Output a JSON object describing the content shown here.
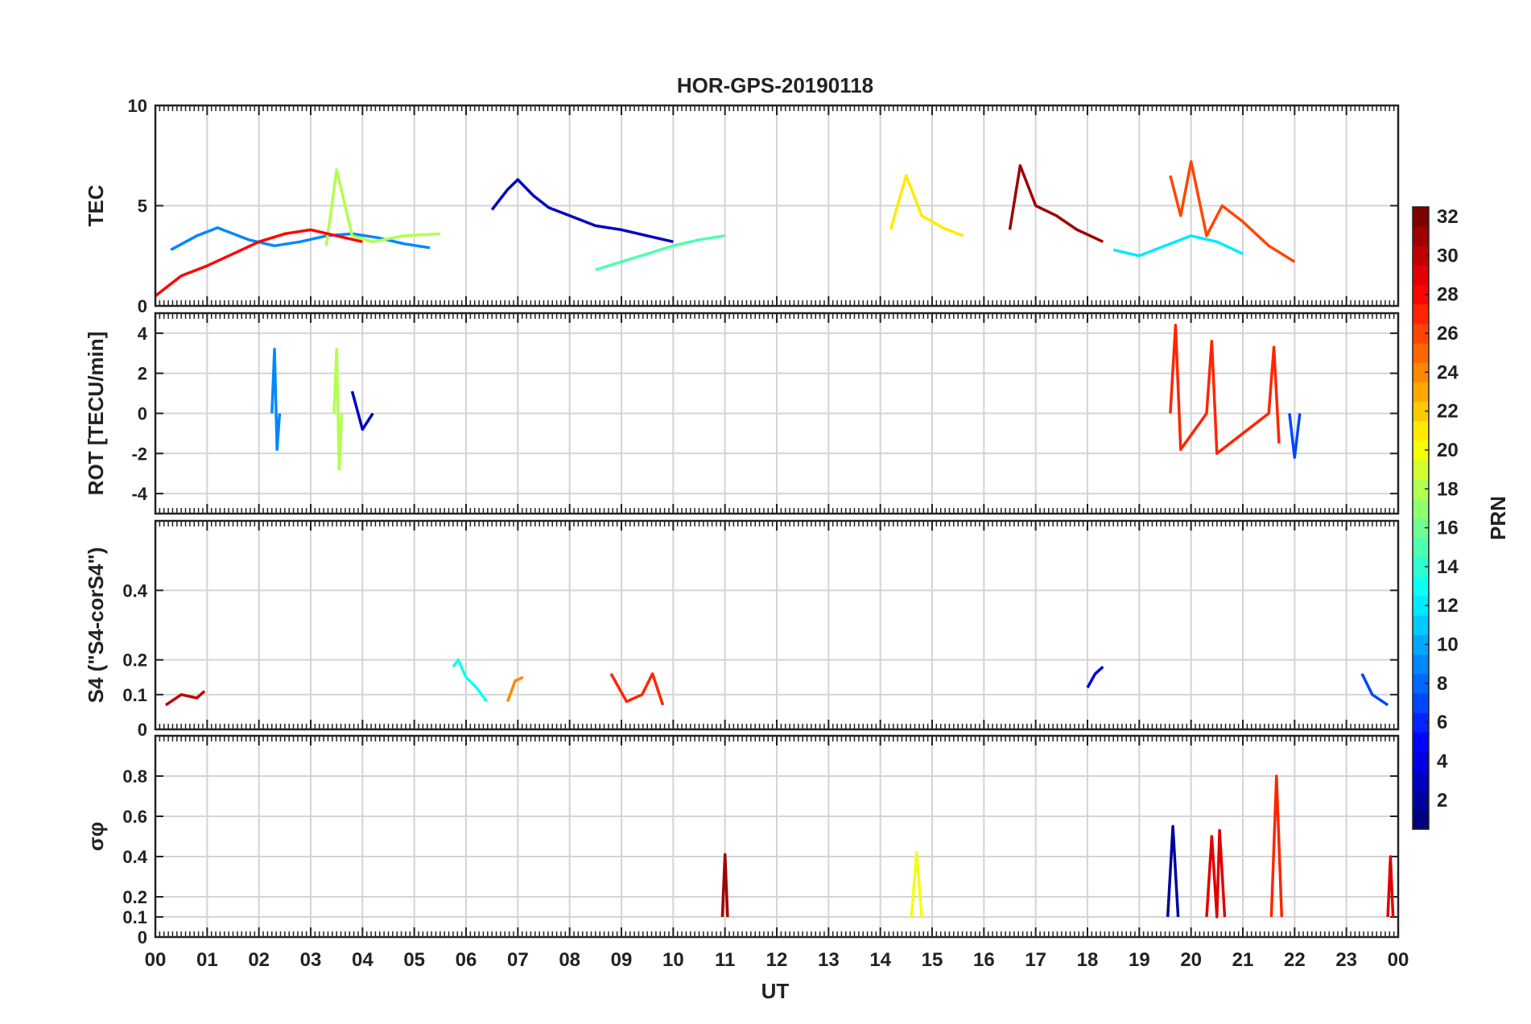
{
  "chart_data": {
    "type": "line",
    "title": "HOR-GPS-20190118",
    "xlabel": "UT",
    "x_ticks": [
      "00",
      "01",
      "02",
      "03",
      "04",
      "05",
      "06",
      "07",
      "08",
      "09",
      "10",
      "11",
      "12",
      "13",
      "14",
      "15",
      "16",
      "17",
      "18",
      "19",
      "20",
      "21",
      "22",
      "23",
      "00"
    ],
    "xlim": [
      0,
      24
    ],
    "grid": true,
    "colormap": "jet",
    "colorbar": {
      "label": "PRN",
      "range": [
        1,
        32
      ],
      "ticks": [
        "2",
        "4",
        "6",
        "8",
        "10",
        "12",
        "14",
        "16",
        "18",
        "20",
        "22",
        "24",
        "26",
        "28",
        "30",
        "32"
      ],
      "placement": "right"
    },
    "panels": [
      {
        "id": "tec",
        "ylabel": "TEC",
        "ylim": [
          0,
          10
        ],
        "yticks": [
          "0",
          "5",
          "10"
        ],
        "series": [
          {
            "prn": 3,
            "x": [
              6.5,
              6.8,
              7.0,
              7.3,
              7.6,
              8.0,
              8.5,
              9.0,
              9.5,
              10.0
            ],
            "values": [
              4.8,
              5.8,
              6.3,
              5.5,
              4.9,
              4.5,
              4.0,
              3.8,
              3.5,
              3.2
            ]
          },
          {
            "prn": 9,
            "x": [
              0.3,
              0.8,
              1.2,
              1.8,
              2.3,
              2.8,
              3.3,
              3.8,
              4.3,
              4.8,
              5.3
            ],
            "values": [
              2.8,
              3.5,
              3.9,
              3.3,
              3.0,
              3.2,
              3.5,
              3.6,
              3.4,
              3.1,
              2.9
            ]
          },
          {
            "prn": 12,
            "x": [
              18.5,
              19.0,
              19.5,
              20.0,
              20.5,
              21.0
            ],
            "values": [
              2.8,
              2.5,
              3.0,
              3.5,
              3.2,
              2.6
            ]
          },
          {
            "prn": 15,
            "x": [
              8.5,
              9.0,
              9.5,
              10.0,
              10.5,
              11.0
            ],
            "values": [
              1.8,
              2.2,
              2.6,
              3.0,
              3.3,
              3.5
            ]
          },
          {
            "prn": 18,
            "x": [
              3.3,
              3.5,
              3.8,
              4.2,
              4.8,
              5.5
            ],
            "values": [
              3.0,
              6.8,
              3.5,
              3.2,
              3.5,
              3.6
            ]
          },
          {
            "prn": 21,
            "x": [
              14.2,
              14.5,
              14.8,
              15.2,
              15.6
            ],
            "values": [
              3.8,
              6.5,
              4.5,
              3.9,
              3.5
            ]
          },
          {
            "prn": 26,
            "x": [
              19.6,
              19.8,
              20.0,
              20.3,
              20.6,
              21.0,
              21.5,
              22.0
            ],
            "values": [
              6.5,
              4.5,
              7.2,
              3.5,
              5.0,
              4.2,
              3.0,
              2.2
            ]
          },
          {
            "prn": 28,
            "x": [
              0.0,
              0.5,
              1.0,
              1.5,
              2.0,
              2.5,
              3.0,
              3.5,
              4.0
            ],
            "values": [
              0.5,
              1.5,
              2.0,
              2.6,
              3.2,
              3.6,
              3.8,
              3.5,
              3.2
            ]
          },
          {
            "prn": 31,
            "x": [
              16.5,
              16.7,
              17.0,
              17.4,
              17.8,
              18.3
            ],
            "values": [
              3.8,
              7.0,
              5.0,
              4.5,
              3.8,
              3.2
            ]
          }
        ]
      },
      {
        "id": "rot",
        "ylabel": "ROT [TECU/min]",
        "ylim": [
          -5,
          5
        ],
        "yticks": [
          "-4",
          "-2",
          "0",
          "2",
          "4"
        ],
        "series": [
          {
            "prn": 3,
            "x": [
              3.8,
              4.0,
              4.2
            ],
            "values": [
              1.1,
              -0.8,
              0.0
            ]
          },
          {
            "prn": 9,
            "x": [
              2.25,
              2.3,
              2.35,
              2.4
            ],
            "values": [
              0.0,
              3.2,
              -1.8,
              0.0
            ]
          },
          {
            "prn": 18,
            "x": [
              3.45,
              3.5,
              3.55,
              3.6
            ],
            "values": [
              0.0,
              3.2,
              -2.8,
              0.0
            ]
          },
          {
            "prn": 27,
            "x": [
              19.6,
              19.7,
              19.8,
              20.3,
              20.4,
              20.5,
              21.5,
              21.6,
              21.7
            ],
            "values": [
              0.0,
              4.4,
              -1.8,
              0.0,
              3.6,
              -2.0,
              0.0,
              3.3,
              -1.5
            ]
          },
          {
            "prn": 7,
            "x": [
              21.9,
              22.0,
              22.1
            ],
            "values": [
              0.0,
              -2.2,
              0.0
            ]
          }
        ]
      },
      {
        "id": "s4",
        "ylabel": "S4 (\"S4-corS4\")",
        "ylim": [
          0,
          0.6
        ],
        "yticks": [
          "0",
          "0.1",
          "0.2",
          "0.4"
        ],
        "series": [
          {
            "prn": 13,
            "x": [
              5.75,
              5.85,
              6.0,
              6.2,
              6.4
            ],
            "values": [
              0.18,
              0.2,
              0.15,
              0.12,
              0.08
            ]
          },
          {
            "prn": 24,
            "x": [
              6.8,
              6.95,
              7.1
            ],
            "values": [
              0.08,
              0.14,
              0.15
            ]
          },
          {
            "prn": 27,
            "x": [
              8.8,
              9.1,
              9.4,
              9.6,
              9.8
            ],
            "values": [
              0.16,
              0.08,
              0.1,
              0.16,
              0.07
            ]
          },
          {
            "prn": 30,
            "x": [
              0.2,
              0.5,
              0.8,
              0.95
            ],
            "values": [
              0.07,
              0.1,
              0.09,
              0.11
            ]
          },
          {
            "prn": 4,
            "x": [
              18.0,
              18.15,
              18.3
            ],
            "values": [
              0.12,
              0.16,
              0.18
            ]
          },
          {
            "prn": 7,
            "x": [
              23.3,
              23.5,
              23.8
            ],
            "values": [
              0.16,
              0.1,
              0.07
            ]
          }
        ]
      },
      {
        "id": "sigma_phi",
        "ylabel": "σφ",
        "ylim": [
          0,
          1
        ],
        "yticks": [
          "0",
          "0.1",
          "0.2",
          "0.4",
          "0.6",
          "0.8"
        ],
        "series": [
          {
            "prn": 27,
            "x": [
              21.55,
              21.65,
              21.75
            ],
            "values": [
              0.1,
              0.8,
              0.1
            ]
          },
          {
            "prn": 2,
            "x": [
              19.55,
              19.65,
              19.75
            ],
            "values": [
              0.1,
              0.55,
              0.1
            ]
          },
          {
            "prn": 29,
            "x": [
              20.3,
              20.4,
              20.5,
              20.55,
              20.65
            ],
            "values": [
              0.1,
              0.5,
              0.1,
              0.53,
              0.1
            ]
          },
          {
            "prn": 20,
            "x": [
              14.6,
              14.7,
              14.8
            ],
            "values": [
              0.1,
              0.42,
              0.1
            ]
          },
          {
            "prn": 31,
            "x": [
              10.95,
              11.0,
              11.05
            ],
            "values": [
              0.1,
              0.41,
              0.1
            ]
          },
          {
            "prn": 29,
            "x": [
              23.8,
              23.85,
              23.9
            ],
            "values": [
              0.1,
              0.4,
              0.1
            ]
          }
        ]
      }
    ]
  }
}
